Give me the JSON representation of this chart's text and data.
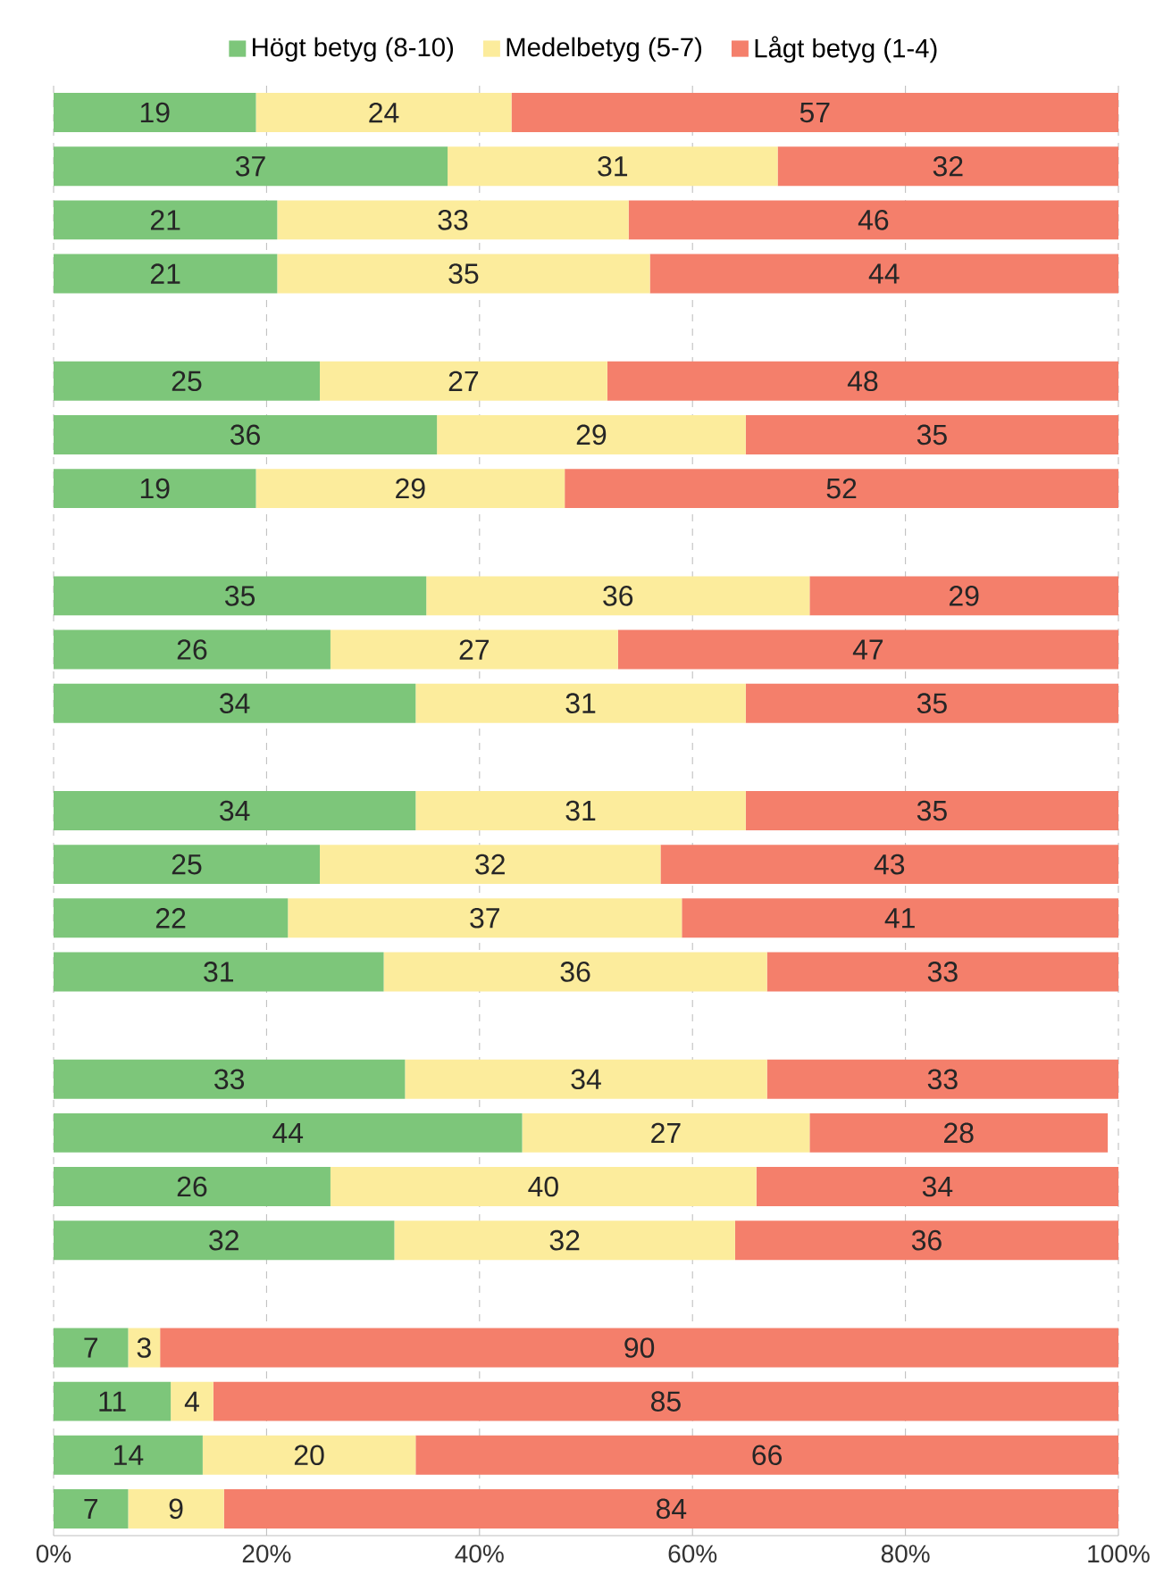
{
  "chart_data": {
    "type": "bar",
    "orientation": "horizontal",
    "stacked": true,
    "data_labels": true,
    "grid": "x",
    "legend": "top",
    "categories": [
      null,
      null,
      null,
      null,
      null,
      null,
      null,
      null,
      null,
      null,
      null,
      null,
      null,
      null,
      null,
      null,
      null,
      null,
      null,
      null,
      null,
      null,
      null,
      null,
      null,
      null,
      null
    ],
    "series": [
      {
        "name": "Högt betyg (8-10)",
        "color": "#7dc67a",
        "values": [
          19,
          37,
          21,
          21,
          null,
          25,
          36,
          19,
          null,
          35,
          26,
          34,
          null,
          34,
          25,
          22,
          31,
          null,
          33,
          44,
          26,
          32,
          null,
          7,
          11,
          14,
          7
        ]
      },
      {
        "name": "Medelbetyg (5-7)",
        "color": "#fcec9c",
        "values": [
          24,
          31,
          33,
          35,
          null,
          27,
          29,
          29,
          null,
          36,
          27,
          31,
          null,
          31,
          32,
          37,
          36,
          null,
          34,
          27,
          40,
          32,
          null,
          3,
          4,
          20,
          9
        ]
      },
      {
        "name": "Lågt betyg (1-4)",
        "color": "#f47f6b",
        "values": [
          57,
          32,
          46,
          44,
          null,
          48,
          35,
          52,
          null,
          29,
          47,
          35,
          null,
          35,
          43,
          41,
          33,
          null,
          33,
          28,
          34,
          36,
          null,
          90,
          85,
          66,
          84
        ]
      }
    ],
    "xlim": [
      0,
      100
    ],
    "xticks": [
      {
        "value": 0,
        "label": "0%"
      },
      {
        "value": 20,
        "label": "20%"
      },
      {
        "value": 40,
        "label": "40%"
      },
      {
        "value": 60,
        "label": "60%"
      },
      {
        "value": 80,
        "label": "80%"
      },
      {
        "value": 100,
        "label": "100%"
      }
    ]
  }
}
